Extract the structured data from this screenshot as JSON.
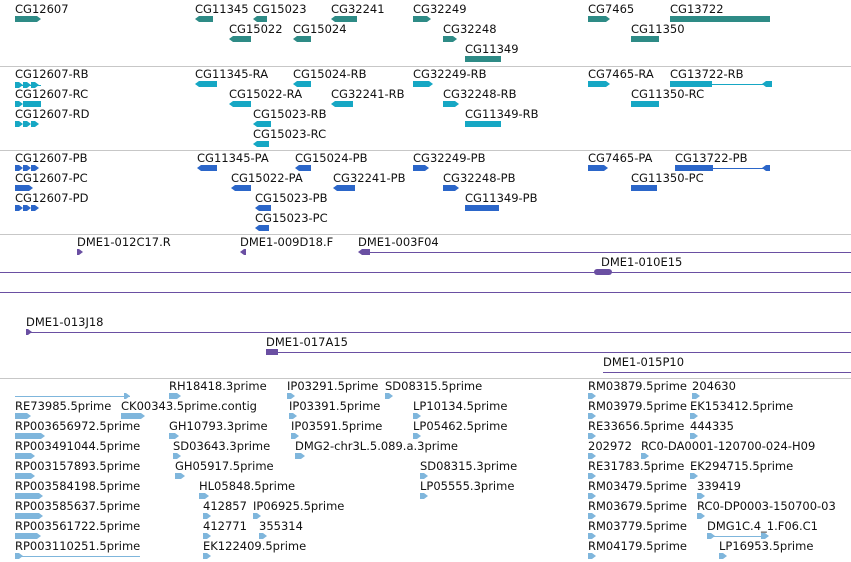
{
  "colors": {
    "gene": "#2e8b86",
    "rna": "#16a7c4",
    "protein": "#2b66c9",
    "clone": "#6a4fa2",
    "est": "#7fb6dc",
    "separator": "#c7c7c7",
    "text": "#111111"
  },
  "tracks": {
    "genes": {
      "labels": [
        "CG12607",
        "CG11345",
        "CG15023",
        "CG32241",
        "CG32249",
        "CG7465",
        "CG13722",
        "CG15022",
        "CG15024",
        "CG32248",
        "CG11350",
        "CG11349"
      ]
    },
    "transcripts": {
      "labels": [
        "CG12607-RB",
        "CG11345-RA",
        "CG15024-RB",
        "CG32249-RB",
        "CG7465-RA",
        "CG13722-RB",
        "CG12607-RC",
        "CG15022-RA",
        "CG32241-RB",
        "CG32248-RB",
        "CG11350-RC",
        "CG12607-RD",
        "CG15023-RB",
        "CG11349-RB",
        "CG15023-RC"
      ]
    },
    "proteins": {
      "labels": [
        "CG12607-PB",
        "CG11345-PA",
        "CG15024-PB",
        "CG32249-PB",
        "CG7465-PA",
        "CG13722-PB",
        "CG12607-PC",
        "CG15022-PA",
        "CG32241-PB",
        "CG32248-PB",
        "CG11350-PC",
        "CG12607-PD",
        "CG15023-PB",
        "CG11349-PB",
        "CG15023-PC"
      ]
    },
    "clones": {
      "labels": [
        "DME1-012C17.R",
        "DME1-009D18.F",
        "DME1-003F04",
        "DME1-010E15",
        "DME1-013J18",
        "DME1-017A15",
        "DME1-015P10"
      ]
    },
    "ests": {
      "labels": [
        "RH18418.3prime",
        "IP03291.5prime",
        "SD08315.5prime",
        "RM03879.5prime",
        "204630",
        "RE73985.5prime",
        "CK00343.5prime.contig",
        "IP03391.5prime",
        "LP10134.5prime",
        "RM03979.5prime",
        "EK153412.5prime",
        "RP003656972.5prime",
        "GH10793.3prime",
        "IP03591.5prime",
        "LP05462.5prime",
        "RE33656.5prime",
        "444335",
        "RP003491044.5prime",
        "SD03643.3prime",
        "DMG2-chr3L.5.089.a.3prime",
        "202972",
        "RC0-DA0001-120700-024-H09",
        "RP003157893.5prime",
        "GH05917.5prime",
        "SD08315.3prime",
        "RE31783.5prime",
        "EK294715.5prime",
        "RP003584198.5prime",
        "HL05848.5prime",
        "LP05555.3prime",
        "RM03479.5prime",
        "339419",
        "RP003585637.5prime",
        "412857",
        "IP06925.5prime",
        "RM03679.5prime",
        "RC0-DP0003-150700-03",
        "RP003561722.5prime",
        "412771",
        "355314",
        "RM03779.5prime",
        "DMG1C.4_1.F06.C1",
        "RP003110251.5prime",
        "EK122409.5prime",
        "RM04179.5prime",
        "LP16953.5prime"
      ]
    }
  }
}
